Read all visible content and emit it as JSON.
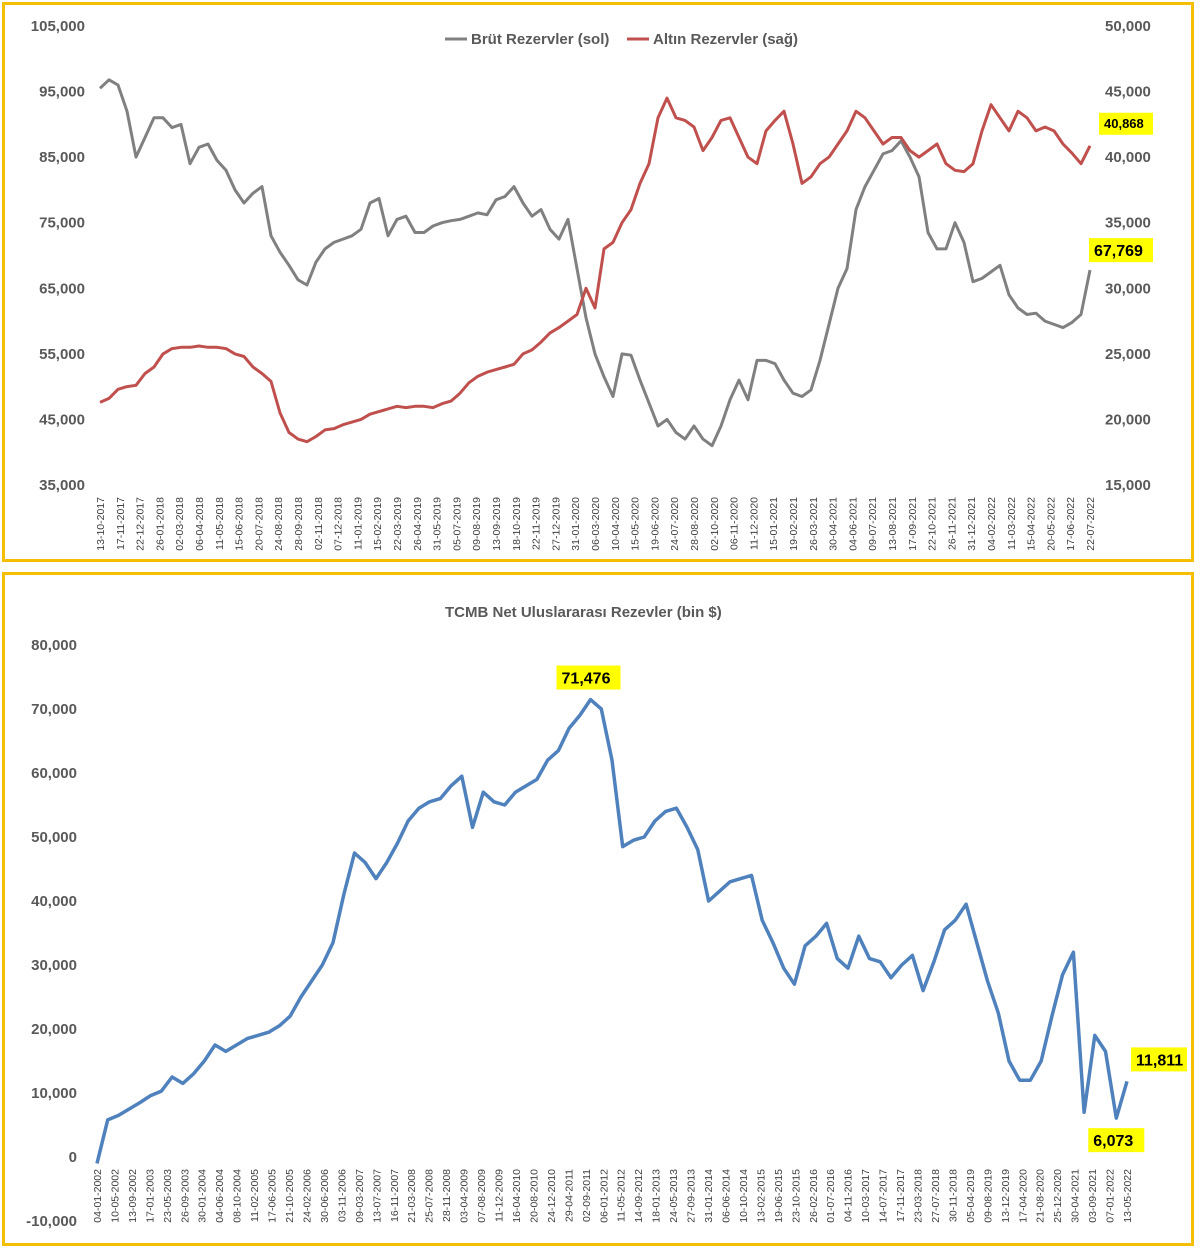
{
  "chart_data": [
    {
      "type": "line",
      "legend_position": "top",
      "grid": false,
      "y_left_ticks": [
        "35,000",
        "45,000",
        "55,000",
        "65,000",
        "75,000",
        "85,000",
        "95,000",
        "105,000"
      ],
      "y_left_range": [
        35000,
        105000
      ],
      "y_right_ticks": [
        "15,000",
        "20,000",
        "25,000",
        "30,000",
        "35,000",
        "40,000",
        "45,000",
        "50,000"
      ],
      "y_right_range": [
        15000,
        50000
      ],
      "x_labels": [
        "13-10-2017",
        "17-11-2017",
        "22-12-2017",
        "26-01-2018",
        "02-03-2018",
        "06-04-2018",
        "11-05-2018",
        "15-06-2018",
        "20-07-2018",
        "24-08-2018",
        "28-09-2018",
        "02-11-2018",
        "07-12-2018",
        "11-01-2019",
        "15-02-2019",
        "22-03-2019",
        "26-04-2019",
        "31-05-2019",
        "05-07-2019",
        "09-08-2019",
        "13-09-2019",
        "18-10-2019",
        "22-11-2019",
        "27-12-2019",
        "31-01-2020",
        "06-03-2020",
        "10-04-2020",
        "15-05-2020",
        "19-06-2020",
        "24-07-2020",
        "28-08-2020",
        "02-10-2020",
        "06-11-2020",
        "11-12-2020",
        "15-01-2021",
        "19-02-2021",
        "26-03-2021",
        "30-04-2021",
        "04-06-2021",
        "09-07-2021",
        "13-08-2021",
        "17-09-2021",
        "22-10-2021",
        "26-11-2021",
        "31-12-2021",
        "04-02-2022",
        "11-03-2022",
        "15-04-2022",
        "20-05-2022",
        "17-06-2022",
        "22-07-2022"
      ],
      "series": [
        {
          "name": "Brüt Rezervler (sol)",
          "axis": "left",
          "color": "#808080",
          "values": [
            95500,
            96800,
            96000,
            92000,
            85000,
            88000,
            91000,
            91000,
            89500,
            90000,
            84000,
            86500,
            87000,
            84500,
            83000,
            80000,
            78000,
            79500,
            80500,
            73000,
            70500,
            68500,
            66300,
            65500,
            69000,
            71000,
            72000,
            72500,
            73000,
            74000,
            78000,
            78700,
            73000,
            75500,
            76000,
            73500,
            73500,
            74500,
            75000,
            75300,
            75500,
            76000,
            76500,
            76200,
            78500,
            79000,
            80500,
            78000,
            76000,
            77000,
            74000,
            72500,
            75500,
            68000,
            60500,
            55000,
            51500,
            48500,
            55000,
            54800,
            51000,
            47500,
            44000,
            45000,
            43000,
            42000,
            44000,
            42000,
            41000,
            44000,
            48000,
            51000,
            48000,
            54000,
            54000,
            53500,
            51000,
            49000,
            48500,
            49500,
            54000,
            59500,
            65000,
            68000,
            77000,
            80500,
            83000,
            85500,
            86000,
            87500,
            85000,
            82000,
            73500,
            71000,
            71000,
            75000,
            72000,
            66000,
            66500,
            67500,
            68500,
            64000,
            62000,
            61000,
            61200,
            60000,
            59500,
            59000,
            59800,
            61000,
            67769
          ]
        },
        {
          "name": "Altın Rezervler (sağ)",
          "axis": "right",
          "color": "#c0504d",
          "values": [
            21300,
            21600,
            22300,
            22500,
            22600,
            23500,
            24000,
            25000,
            25400,
            25500,
            25500,
            25600,
            25500,
            25500,
            25400,
            25000,
            24800,
            24000,
            23500,
            22900,
            20500,
            19000,
            18500,
            18300,
            18700,
            19200,
            19300,
            19600,
            19800,
            20000,
            20400,
            20600,
            20800,
            21000,
            20900,
            21000,
            21000,
            20900,
            21200,
            21400,
            22000,
            22800,
            23300,
            23600,
            23800,
            24000,
            24200,
            25000,
            25300,
            25900,
            26600,
            27000,
            27500,
            28000,
            30000,
            28500,
            33000,
            33500,
            35000,
            36000,
            38000,
            39500,
            43000,
            44500,
            43000,
            42800,
            42300,
            40500,
            41500,
            42800,
            43000,
            41500,
            40000,
            39500,
            42000,
            42800,
            43500,
            41000,
            38000,
            38500,
            39500,
            40000,
            41000,
            42000,
            43500,
            43000,
            42000,
            41000,
            41500,
            41500,
            40500,
            40000,
            40500,
            41000,
            39500,
            39000,
            38900,
            39500,
            42000,
            44000,
            43000,
            42000,
            43500,
            43000,
            42000,
            42300,
            42000,
            41000,
            40300,
            39500,
            40868
          ]
        }
      ],
      "callouts": [
        {
          "series": "Altın Rezervler (sağ)",
          "label": "40,868"
        },
        {
          "series": "Brüt Rezervler (sol)",
          "label": "67,769"
        }
      ]
    },
    {
      "type": "line",
      "title": "TCMB Net Uluslararası Rezevler (bin $)",
      "grid": false,
      "y_ticks": [
        "-10,000",
        "0",
        "10,000",
        "20,000",
        "30,000",
        "40,000",
        "50,000",
        "60,000",
        "70,000",
        "80,000"
      ],
      "y_range": [
        -10000,
        80000
      ],
      "x_labels": [
        "04-01-2002",
        "10-05-2002",
        "13-09-2002",
        "17-01-2003",
        "23-05-2003",
        "26-09-2003",
        "30-01-2004",
        "04-06-2004",
        "08-10-2004",
        "11-02-2005",
        "17-06-2005",
        "21-10-2005",
        "24-02-2006",
        "30-06-2006",
        "03-11-2006",
        "09-03-2007",
        "13-07-2007",
        "16-11-2007",
        "21-03-2008",
        "25-07-2008",
        "28-11-2008",
        "03-04-2009",
        "07-08-2009",
        "11-12-2009",
        "16-04-2010",
        "20-08-2010",
        "24-12-2010",
        "29-04-2011",
        "02-09-2011",
        "06-01-2012",
        "11-05-2012",
        "14-09-2012",
        "18-01-2013",
        "24-05-2013",
        "27-09-2013",
        "31-01-2014",
        "06-06-2014",
        "10-10-2014",
        "13-02-2015",
        "19-06-2015",
        "23-10-2015",
        "26-02-2016",
        "01-07-2016",
        "04-11-2016",
        "10-03-2017",
        "14-07-2017",
        "17-11-2017",
        "23-03-2018",
        "27-07-2018",
        "30-11-2018",
        "05-04-2019",
        "09-08-2019",
        "13-12-2019",
        "17-04-2020",
        "21-08-2020",
        "25-12-2020",
        "30-04-2021",
        "03-09-2021",
        "07-01-2022",
        "13-05-2022"
      ],
      "series": [
        {
          "name": "",
          "color": "#4f81bd",
          "values": [
            -1000,
            5800,
            6500,
            7500,
            8500,
            9600,
            10300,
            12500,
            11500,
            13000,
            15000,
            17500,
            16500,
            17500,
            18500,
            19000,
            19500,
            20500,
            22000,
            25000,
            27500,
            30000,
            33500,
            41000,
            47500,
            46000,
            43500,
            46000,
            49000,
            52500,
            54500,
            55500,
            56000,
            58000,
            59500,
            51500,
            57000,
            55500,
            55000,
            57000,
            58000,
            59000,
            62000,
            63500,
            67000,
            69000,
            71476,
            70000,
            62000,
            48500,
            49500,
            50000,
            52500,
            54000,
            54500,
            51500,
            48000,
            40000,
            41500,
            43000,
            43500,
            44000,
            37000,
            33500,
            29500,
            27000,
            33000,
            34500,
            36500,
            31000,
            29500,
            34500,
            31000,
            30500,
            28000,
            30000,
            31500,
            26000,
            30500,
            35500,
            37000,
            39500,
            33500,
            27500,
            22500,
            15000,
            12000,
            12000,
            15000,
            22000,
            28500,
            32000,
            7000,
            19000,
            16500,
            6073,
            11811
          ]
        }
      ],
      "callouts": [
        {
          "label": "71,476"
        },
        {
          "label": "6,073"
        },
        {
          "label": "11,811"
        }
      ]
    }
  ]
}
